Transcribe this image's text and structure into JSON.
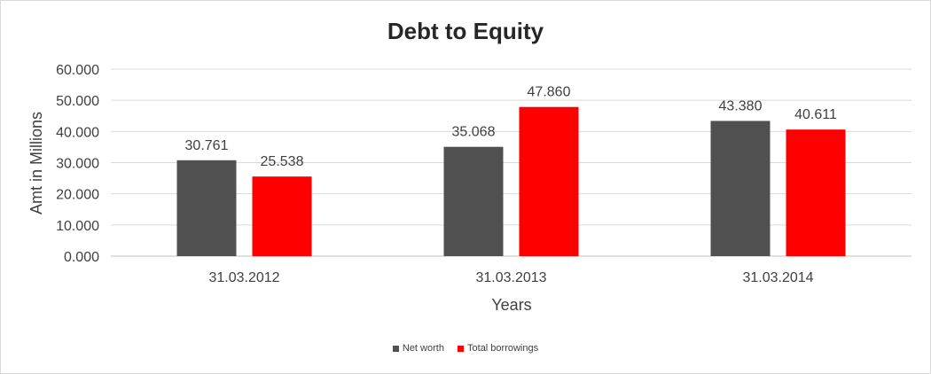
{
  "chart_data": {
    "type": "bar",
    "title": "Debt to Equity",
    "xlabel": "Years",
    "ylabel": "Amt in Millions",
    "categories": [
      "31.03.2012",
      "31.03.2013",
      "31.03.2014"
    ],
    "series": [
      {
        "name": "Net worth",
        "values": [
          30.761,
          35.068,
          43.38
        ],
        "labels": [
          "30.761",
          "35.068",
          "43.380"
        ],
        "color": "#505050"
      },
      {
        "name": "Total borrowings",
        "values": [
          25.538,
          47.86,
          40.611
        ],
        "labels": [
          "25.538",
          "47.860",
          "40.611"
        ],
        "color": "#ff0000"
      }
    ],
    "ylim": [
      0,
      60
    ],
    "yticks": [
      "0.000",
      "10.000",
      "20.000",
      "30.000",
      "40.000",
      "50.000",
      "60.000"
    ],
    "grid": true,
    "legend": "bottom"
  }
}
